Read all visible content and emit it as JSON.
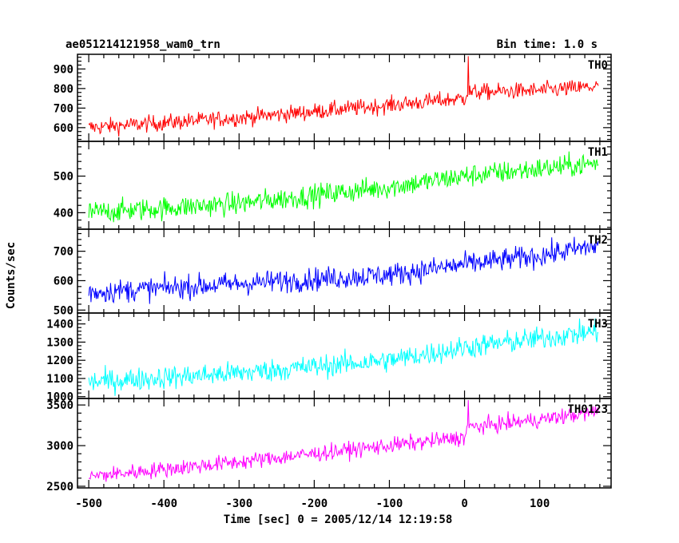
{
  "header": {
    "title": "ae051214121958_wam0_trn",
    "bin_time": "Bin time: 1.0 s"
  },
  "chart_data": {
    "type": "line",
    "title": "ae051214121958_wam0_trn",
    "xlabel": "Time [sec] 0 = 2005/12/14 12:19:58",
    "ylabel": "Counts/sec",
    "xlim": [
      -515,
      195
    ],
    "x_ticks": [
      -500,
      -400,
      -300,
      -200,
      -100,
      0,
      100
    ],
    "x_range": [
      -500,
      178
    ],
    "bin_time_s": 1.0,
    "grid": false,
    "panels": [
      {
        "name": "TH0",
        "color": "#ff0000",
        "ylim": [
          530,
          975
        ],
        "y_ticks": [
          600,
          700,
          800,
          900
        ],
        "trend": [
          [
            -500,
            600
          ],
          [
            -300,
            650
          ],
          [
            -100,
            715
          ],
          [
            0,
            750
          ],
          [
            3,
            780
          ],
          [
            100,
            790
          ],
          [
            178,
            810
          ]
        ],
        "noise_amplitude": 30,
        "spike": [
          {
            "x": 5,
            "y": 965
          }
        ]
      },
      {
        "name": "TH1",
        "color": "#00ff00",
        "ylim": [
          355,
          595
        ],
        "y_ticks": [
          400,
          500
        ],
        "trend": [
          [
            -500,
            400
          ],
          [
            -300,
            425
          ],
          [
            -100,
            470
          ],
          [
            0,
            500
          ],
          [
            100,
            520
          ],
          [
            178,
            535
          ]
        ],
        "noise_amplitude": 22,
        "spike": []
      },
      {
        "name": "TH2",
        "color": "#0000ff",
        "ylim": [
          490,
          775
        ],
        "y_ticks": [
          500,
          600,
          700
        ],
        "trend": [
          [
            -500,
            560
          ],
          [
            -300,
            590
          ],
          [
            -100,
            620
          ],
          [
            0,
            655
          ],
          [
            100,
            685
          ],
          [
            178,
            720
          ]
        ],
        "noise_amplitude": 28,
        "spike": []
      },
      {
        "name": "TH3",
        "color": "#00ffff",
        "ylim": [
          990,
          1460
        ],
        "y_ticks": [
          1000,
          1100,
          1200,
          1300,
          1400
        ],
        "trend": [
          [
            -500,
            1080
          ],
          [
            -300,
            1130
          ],
          [
            -100,
            1200
          ],
          [
            0,
            1270
          ],
          [
            100,
            1320
          ],
          [
            178,
            1360
          ]
        ],
        "noise_amplitude": 45,
        "spike": []
      },
      {
        "name": "TH0123",
        "color": "#ff00ff",
        "ylim": [
          2480,
          3580
        ],
        "y_ticks": [
          2500,
          3000,
          3500
        ],
        "trend": [
          [
            -500,
            2620
          ],
          [
            -300,
            2800
          ],
          [
            -100,
            3000
          ],
          [
            0,
            3100
          ],
          [
            3,
            3220
          ],
          [
            100,
            3320
          ],
          [
            178,
            3420
          ]
        ],
        "noise_amplitude": 70,
        "spike": [
          {
            "x": 5,
            "y": 3560
          }
        ]
      }
    ]
  }
}
